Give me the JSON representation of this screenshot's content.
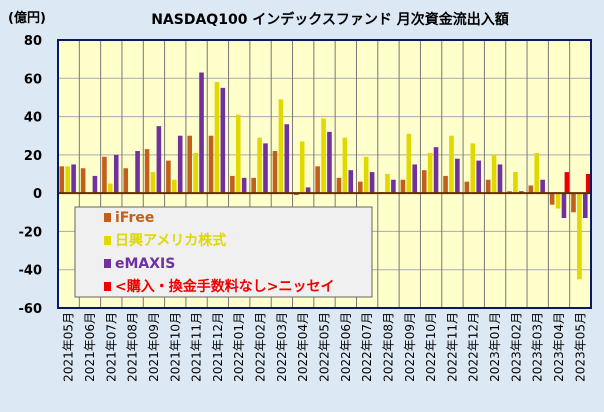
{
  "chart_data": {
    "type": "bar",
    "title": "NASDAQ100 インデックスファンド 月次資金流出入額",
    "ylabel": "(億円)",
    "ylim": [
      -60,
      80
    ],
    "yticks": [
      80,
      60,
      40,
      20,
      0,
      -20,
      -40,
      -60
    ],
    "grid": true,
    "legend_position": "bottom-left",
    "categories": [
      "2021年05月",
      "2021年06月",
      "2021年07月",
      "2021年08月",
      "2021年09月",
      "2021年10月",
      "2021年11月",
      "2021年12月",
      "2022年01月",
      "2022年02月",
      "2022年03月",
      "2022年04月",
      "2022年05月",
      "2022年06月",
      "2022年07月",
      "2022年08月",
      "2022年09月",
      "2022年10月",
      "2022年11月",
      "2022年12月",
      "2023年01月",
      "2023年02月",
      "2023年03月",
      "2023年04月",
      "2023年05月"
    ],
    "series": [
      {
        "name": "iFree",
        "color": "#c0601a",
        "values": [
          14,
          13,
          19,
          13,
          23,
          17,
          30,
          30,
          9,
          8,
          22,
          -1,
          14,
          8,
          6,
          0.5,
          7,
          12,
          9,
          6,
          7,
          1,
          4,
          -6,
          -10
        ]
      },
      {
        "name": "日興アメリカ株式",
        "color": "#e0d800",
        "values": [
          14,
          0.5,
          5,
          0.5,
          11,
          7,
          21,
          58,
          41,
          29,
          49,
          27,
          39,
          29,
          19,
          10,
          31,
          21,
          30,
          26,
          20,
          11,
          21,
          -8,
          -45
        ]
      },
      {
        "name": "eMAXIS",
        "color": "#7030a0",
        "values": [
          15,
          9,
          20,
          22,
          35,
          30,
          63,
          55,
          8,
          26,
          36,
          3,
          32,
          12,
          11,
          7,
          15,
          24,
          18,
          17,
          15,
          1,
          7,
          -13,
          -13
        ]
      },
      {
        "name": "<購入・換金手数料なし>ニッセイ",
        "color": "#ee0000",
        "values": [
          null,
          null,
          null,
          null,
          null,
          null,
          null,
          null,
          null,
          null,
          null,
          null,
          null,
          null,
          null,
          null,
          null,
          null,
          null,
          null,
          null,
          null,
          null,
          11,
          10
        ]
      }
    ]
  }
}
